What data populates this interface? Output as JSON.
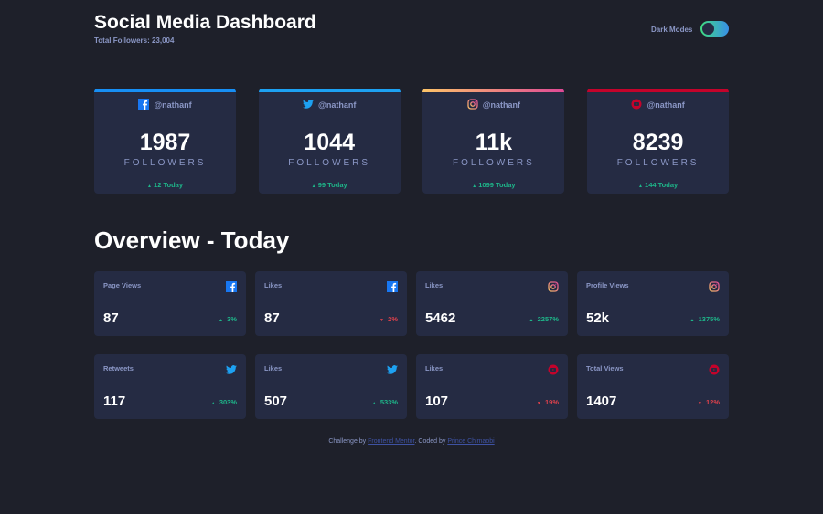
{
  "header": {
    "title": "Social Media Dashboard",
    "total": "Total Followers: 23,004",
    "dark_mode_label": "Dark Modes",
    "dark_mode_on": true
  },
  "colors": {
    "facebook": "#1877f2",
    "twitter": "#1da1f2",
    "instagram": "#e1306c",
    "youtube": "#c4032b",
    "up": "#1eb589",
    "down": "#dc414c"
  },
  "followers": [
    {
      "network": "facebook",
      "icon": "facebook-icon",
      "handle": "@nathanf",
      "count": "1987",
      "label": "FOLLOWERS",
      "today": "12 Today",
      "trend": "up"
    },
    {
      "network": "twitter",
      "icon": "twitter-icon",
      "handle": "@nathanf",
      "count": "1044",
      "label": "FOLLOWERS",
      "today": "99 Today",
      "trend": "up"
    },
    {
      "network": "instagram",
      "icon": "instagram-icon",
      "handle": "@nathanf",
      "count": "11k",
      "label": "FOLLOWERS",
      "today": "1099 Today",
      "trend": "up"
    },
    {
      "network": "youtube",
      "icon": "youtube-icon",
      "handle": "@nathanf",
      "count": "8239",
      "label": "FOLLOWERS",
      "today": "144 Today",
      "trend": "up"
    }
  ],
  "overview_title": "Overview - Today",
  "overview": [
    {
      "label": "Page Views",
      "network": "facebook",
      "value": "87",
      "pct": "3%",
      "trend": "up"
    },
    {
      "label": "Likes",
      "network": "facebook",
      "value": "87",
      "pct": "2%",
      "trend": "down"
    },
    {
      "label": "Likes",
      "network": "instagram",
      "value": "5462",
      "pct": "2257%",
      "trend": "up"
    },
    {
      "label": "Profile Views",
      "network": "instagram",
      "value": "52k",
      "pct": "1375%",
      "trend": "up"
    },
    {
      "label": "Retweets",
      "network": "twitter",
      "value": "117",
      "pct": "303%",
      "trend": "up"
    },
    {
      "label": "Likes",
      "network": "twitter",
      "value": "507",
      "pct": "533%",
      "trend": "up"
    },
    {
      "label": "Likes",
      "network": "youtube",
      "value": "107",
      "pct": "19%",
      "trend": "down"
    },
    {
      "label": "Total Views",
      "network": "youtube",
      "value": "1407",
      "pct": "12%",
      "trend": "down"
    }
  ],
  "footer": {
    "prefix": "Challenge by ",
    "link1": "Frontend Mentor",
    "middle": ". Coded by ",
    "link2": "Prince Chimaobi"
  }
}
